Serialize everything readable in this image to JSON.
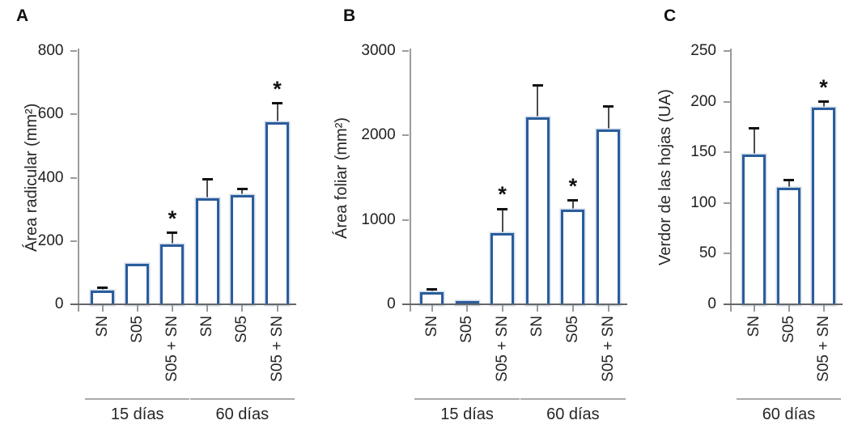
{
  "figure": {
    "sig_marker": "*",
    "colors": {
      "bar_border": "#2a5d9c",
      "bar_fill": "#ffffff",
      "bar_halo": "#cdd9ea",
      "axis": "#9b9b9b",
      "baseline": "#666666",
      "group_line": "#aaaaaa",
      "error_line": "#4d4d4d",
      "error_cap": "#111111",
      "text": "#262626"
    }
  },
  "chart_data": [
    {
      "panel": "A",
      "type": "bar",
      "ylabel": "Área radicular (mm²)",
      "ylim": [
        0,
        800
      ],
      "yticks": [
        "0",
        "200",
        "400",
        "600",
        "800"
      ],
      "categories": [
        "SN",
        "S05",
        "S05 + SN",
        "SN",
        "S05",
        "S05 + SN"
      ],
      "values": [
        44,
        127,
        189,
        334,
        345,
        575
      ],
      "errors": [
        9,
        0,
        37,
        62,
        18,
        59
      ],
      "significant": [
        false,
        false,
        true,
        false,
        false,
        true
      ],
      "groups": [
        {
          "label": "15 días",
          "from": 0,
          "to": 2
        },
        {
          "label": "60 días",
          "from": 3,
          "to": 5
        }
      ]
    },
    {
      "panel": "B",
      "type": "bar",
      "ylabel": "Área foliar (mm²)",
      "ylim": [
        0,
        3000
      ],
      "yticks": [
        "0",
        "1000",
        "2000",
        "3000"
      ],
      "categories": [
        "SN",
        "S05",
        "S05 + SN",
        "SN",
        "S05",
        "S05 + SN"
      ],
      "values": [
        145,
        40,
        840,
        2210,
        1120,
        2075
      ],
      "errors": [
        30,
        0,
        290,
        380,
        110,
        270
      ],
      "significant": [
        false,
        false,
        true,
        false,
        true,
        false
      ],
      "groups": [
        {
          "label": "15 días",
          "from": 0,
          "to": 2
        },
        {
          "label": "60 días",
          "from": 3,
          "to": 5
        }
      ]
    },
    {
      "panel": "C",
      "type": "bar",
      "ylabel": "Verdor de las hojas (UA)",
      "ylim": [
        0,
        250
      ],
      "yticks": [
        "0",
        "50",
        "100",
        "150",
        "200",
        "250"
      ],
      "categories": [
        "SN",
        "S05",
        "S05 + SN"
      ],
      "values": [
        148,
        115,
        194
      ],
      "errors": [
        26,
        8,
        6
      ],
      "significant": [
        false,
        false,
        true
      ],
      "groups": [
        {
          "label": "60 días",
          "from": 0,
          "to": 2
        }
      ]
    }
  ]
}
